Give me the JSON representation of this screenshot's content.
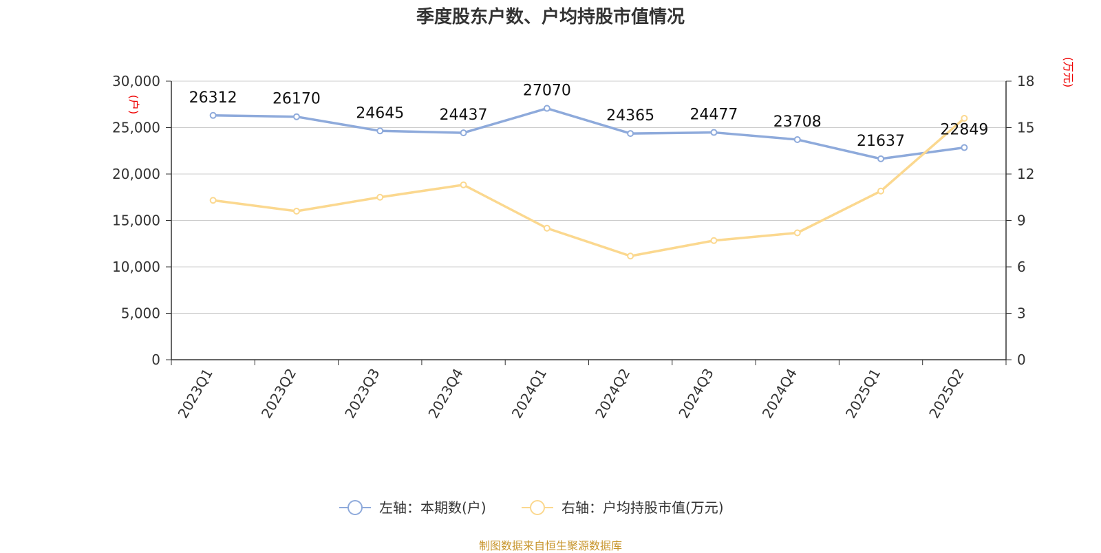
{
  "title": "季度股东户数、户均持股市值情况",
  "source": "制图数据来自恒生聚源数据库",
  "chart_data": {
    "type": "line",
    "categories": [
      "2023Q1",
      "2023Q2",
      "2023Q3",
      "2023Q4",
      "2024Q1",
      "2024Q2",
      "2024Q3",
      "2024Q4",
      "2025Q1",
      "2025Q2"
    ],
    "series": [
      {
        "name": "左轴：本期数(户)",
        "axis": "left",
        "color": "#8eaadb",
        "values": [
          26312,
          26170,
          24645,
          24437,
          27070,
          24365,
          24477,
          23708,
          21637,
          22849
        ],
        "labels": [
          "26312",
          "26170",
          "24645",
          "24437",
          "27070",
          "24365",
          "24477",
          "23708",
          "21637",
          "22849"
        ]
      },
      {
        "name": "右轴：户均持股市值(万元)",
        "axis": "right",
        "color": "#fbd88f",
        "values": [
          10.3,
          9.6,
          10.5,
          11.3,
          8.5,
          6.7,
          7.7,
          8.2,
          10.9,
          15.6
        ]
      }
    ],
    "y_left": {
      "unit": "(户)",
      "ylim": [
        0,
        30000
      ],
      "ticks": [
        "0",
        "5,000",
        "10,000",
        "15,000",
        "20,000",
        "25,000",
        "30,000"
      ]
    },
    "y_right": {
      "unit": "(万元)",
      "ylim": [
        0,
        18
      ],
      "ticks": [
        "0",
        "3",
        "6",
        "9",
        "12",
        "15",
        "18"
      ]
    },
    "grid": true,
    "legend_position": "bottom"
  }
}
